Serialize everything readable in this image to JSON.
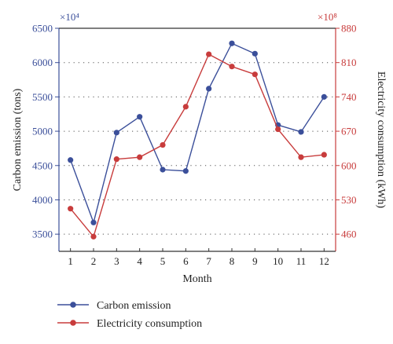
{
  "chart_data": {
    "type": "line",
    "x": [
      1,
      2,
      3,
      4,
      5,
      6,
      7,
      8,
      9,
      10,
      11,
      12
    ],
    "xlabel": "Month",
    "series": [
      {
        "name": "Carbon emission",
        "axis": "left",
        "color": "#3b4f9a",
        "values": [
          4580,
          3670,
          4980,
          5210,
          4440,
          4420,
          5620,
          6280,
          6130,
          5090,
          4990,
          5500
        ]
      },
      {
        "name": "Electricity consumption",
        "axis": "right",
        "color": "#c83c3c",
        "values": [
          512,
          455,
          613,
          617,
          642,
          720,
          827,
          802,
          786,
          674,
          617,
          622
        ]
      }
    ],
    "y_left": {
      "label": "Carbon emission (tons)",
      "scale_note": "×10⁴",
      "ticks": [
        3500,
        4000,
        4500,
        5000,
        5500,
        6000,
        6500
      ],
      "lim": [
        3250,
        6500
      ]
    },
    "y_right": {
      "label": "Electricity consumption (kWh)",
      "scale_note": "×10⁸",
      "ticks": [
        460,
        530,
        600,
        670,
        740,
        810,
        880
      ],
      "lim": [
        425,
        880
      ]
    },
    "xlim": [
      0.5,
      12.5
    ],
    "grid": "horizontal-dotted",
    "legend_placement": "bottom-left"
  }
}
